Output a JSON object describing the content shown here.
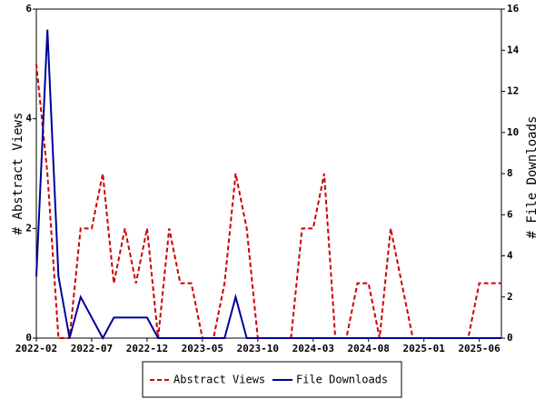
{
  "chart_data": {
    "type": "line",
    "categories": [
      "2022-02",
      null,
      null,
      null,
      null,
      "2022-07",
      null,
      null,
      null,
      null,
      "2022-12",
      null,
      null,
      null,
      null,
      "2023-05",
      null,
      null,
      null,
      null,
      "2023-10",
      null,
      null,
      null,
      null,
      "2024-03",
      null,
      null,
      null,
      null,
      "2024-08",
      null,
      null,
      null,
      null,
      "2025-01",
      null,
      null,
      null,
      null,
      "2025-06",
      null,
      null
    ],
    "ylabel": "# Abstract Views",
    "y2label": "# File Downloads",
    "ylim": [
      0,
      6
    ],
    "yticks": [
      0,
      2,
      4,
      6
    ],
    "y2lim": [
      0,
      16
    ],
    "y2ticks": [
      0,
      2,
      4,
      6,
      8,
      10,
      12,
      14,
      16
    ],
    "series": [
      {
        "name": "Abstract Views",
        "color": "#cc0000",
        "dashed": true,
        "values": [
          5,
          3,
          0,
          0,
          2,
          2,
          3,
          1,
          2,
          1,
          2,
          0,
          2,
          1,
          1,
          0,
          0,
          1,
          3,
          2,
          0,
          0,
          0,
          0,
          2,
          2,
          3,
          0,
          0,
          1,
          1,
          0,
          2,
          1,
          0,
          0,
          0,
          0,
          0,
          0,
          1,
          1,
          1
        ]
      },
      {
        "name": "File Downloads",
        "color": "#000099",
        "axis": "y2",
        "values": [
          3,
          15,
          3,
          0,
          2,
          1,
          0,
          1,
          1,
          1,
          1,
          0,
          0,
          0,
          0,
          0,
          0,
          0,
          2,
          0,
          0,
          0,
          0,
          0,
          0,
          0,
          0,
          0,
          0,
          0,
          0,
          0,
          0,
          0,
          0,
          0,
          0,
          0,
          0,
          0,
          0,
          0,
          0
        ]
      }
    ],
    "legend": "bottom"
  }
}
